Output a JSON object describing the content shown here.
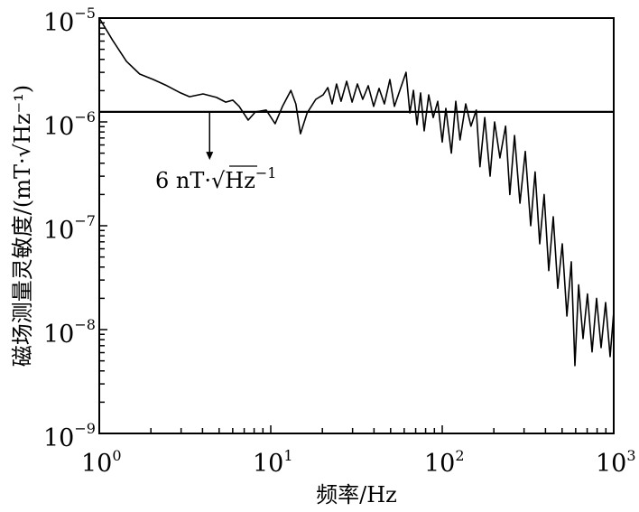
{
  "chart_data": {
    "type": "line",
    "title": "",
    "xlabel": "频率/Hz",
    "ylabel": "磁场测量灵敏度/(mT·√Hz⁻¹)",
    "xscale": "log",
    "yscale": "log",
    "xlim": [
      1,
      1000
    ],
    "ylim": [
      1e-09,
      1e-05
    ],
    "grid": false,
    "x_ticks": [
      {
        "base": "10",
        "exp": "0",
        "value": 1
      },
      {
        "base": "10",
        "exp": "1",
        "value": 10
      },
      {
        "base": "10",
        "exp": "2",
        "value": 100
      },
      {
        "base": "10",
        "exp": "3",
        "value": 1000
      }
    ],
    "y_ticks": [
      {
        "base": "10",
        "exp": "−5",
        "value": 1e-05
      },
      {
        "base": "10",
        "exp": "−6",
        "value": 1e-06
      },
      {
        "base": "10",
        "exp": "−7",
        "value": 1e-07
      },
      {
        "base": "10",
        "exp": "−8",
        "value": 1e-08
      },
      {
        "base": "10",
        "exp": "−9",
        "value": 1e-09
      }
    ],
    "reference_line": {
      "value": 1.25e-06
    },
    "annotation": {
      "text_main": "6 nT·√Hz",
      "text_exp": "−1",
      "arrow_from": [
        4.4,
        1.25e-06
      ],
      "arrow_to": [
        4.4,
        4.3e-07
      ]
    },
    "series": [
      {
        "name": "sensitivity",
        "x": [
          1,
          1.2,
          1.44,
          1.72,
          2.07,
          2.48,
          2.98,
          3.36,
          4.03,
          4.83,
          5.46,
          6.01,
          6.54,
          7.39,
          8.14,
          9.41,
          10.6,
          11.7,
          13.1,
          14.0,
          14.9,
          16.3,
          18.3,
          20.2,
          21.5,
          22.8,
          24.2,
          25.7,
          27.7,
          29.8,
          32.0,
          34.4,
          37.0,
          39.8,
          42.8,
          46.0,
          49.5,
          52.6,
          56.6,
          61.5,
          64.7,
          67.9,
          71.2,
          74.8,
          78.5,
          83.4,
          88.6,
          94.1,
          100,
          105,
          113,
          120,
          127,
          137,
          147,
          158,
          166,
          177,
          190,
          202,
          217,
          234,
          248,
          264,
          284,
          305,
          328,
          348,
          370,
          393,
          418,
          444,
          472,
          501,
          533,
          566,
          594,
          624,
          662,
          703,
          748,
          794,
          844,
          897,
          953,
          1000
        ],
        "values": [
          1e-05,
          6.07e-06,
          3.83e-06,
          2.89e-06,
          2.56e-06,
          2.23e-06,
          1.9e-06,
          1.75e-06,
          1.86e-06,
          1.72e-06,
          1.55e-06,
          1.62e-06,
          1.41e-06,
          1.04e-06,
          1.25e-06,
          1.3e-06,
          9.6e-07,
          1.41e-06,
          2.01e-06,
          1.49e-06,
          7.7e-07,
          1.22e-06,
          1.65e-06,
          1.82e-06,
          2.14e-06,
          1.49e-06,
          2.32e-06,
          1.58e-06,
          2.46e-06,
          1.55e-06,
          2.32e-06,
          1.65e-06,
          2.23e-06,
          1.41e-06,
          2.1e-06,
          1.49e-06,
          2.56e-06,
          1.41e-06,
          2.01e-06,
          3e-06,
          1.22e-06,
          2.01e-06,
          9.4e-07,
          1.9e-06,
          8.2e-07,
          1.82e-06,
          1.1e-06,
          1.58e-06,
          6.4e-07,
          1.35e-06,
          5e-07,
          1.58e-06,
          6.7e-07,
          1.49e-06,
          9.1e-07,
          1.3e-06,
          3.7e-07,
          1.1e-06,
          3e-07,
          1e-06,
          4.5e-07,
          9.1e-07,
          2e-07,
          7.4e-07,
          1.65e-07,
          5.2e-07,
          1e-07,
          3.3e-07,
          6.7e-08,
          2e-07,
          3.7e-08,
          1.22e-07,
          2.5e-08,
          6.7e-08,
          1.35e-08,
          4.5e-08,
          4.5e-09,
          2.7e-08,
          8.2e-09,
          2.2e-08,
          6.1e-09,
          2e-08,
          6.7e-09,
          1.82e-08,
          5.5e-09,
          1.49e-08
        ]
      }
    ]
  }
}
